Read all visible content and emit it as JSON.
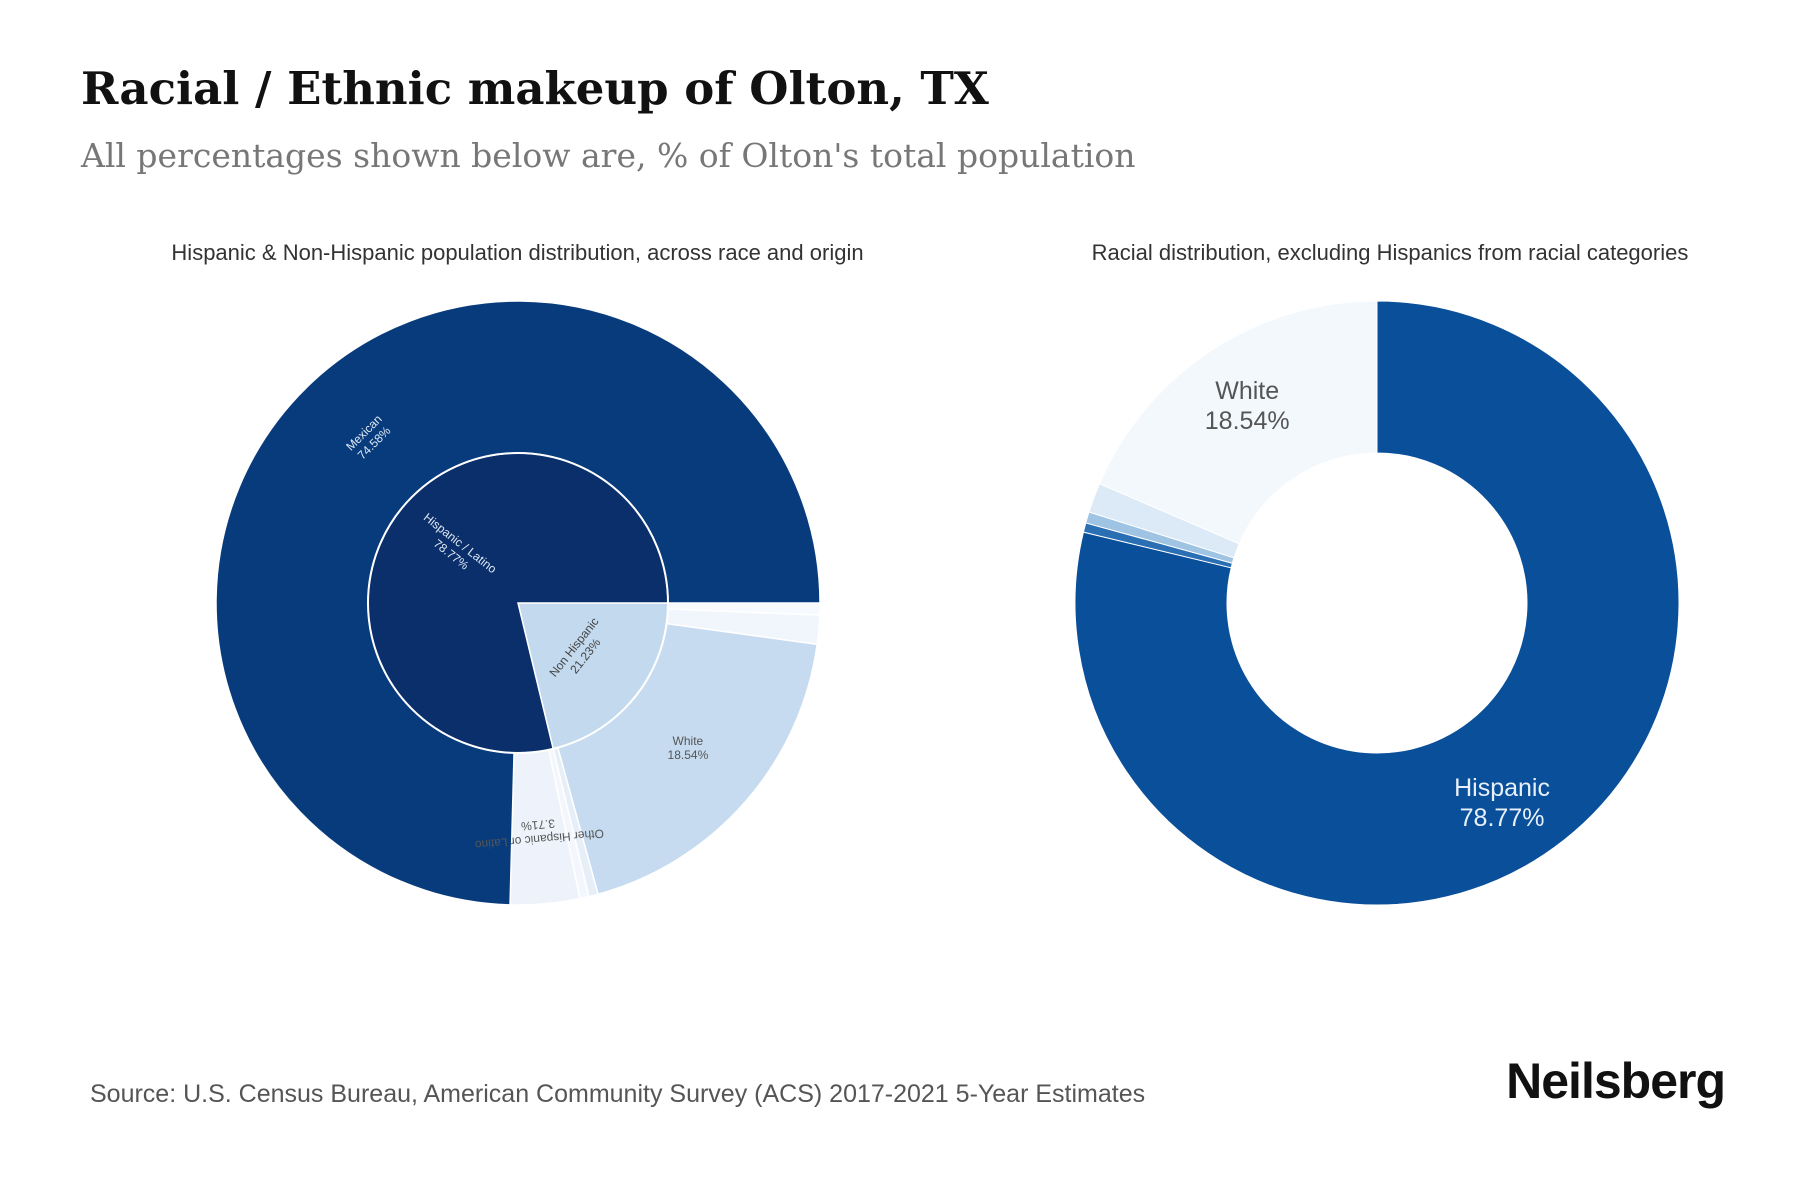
{
  "title": "Racial / Ethnic makeup of Olton, TX",
  "subtitle": "All percentages shown below are, % of Olton's total population",
  "source": "Source: U.S. Census Bureau, American Community Survey (ACS) 2017-2021 5-Year Estimates",
  "brand": "Neilsberg",
  "chart_data": [
    {
      "type": "sunburst",
      "title": "Hispanic & Non-Hispanic population distribution, across race and origin",
      "inner": [
        {
          "label": "Hispanic / Latino",
          "value_label": "78.77%",
          "value": 78.77,
          "color": "#0a2f6b"
        },
        {
          "label": "Non Hispanic",
          "value_label": "21.23%",
          "value": 21.23,
          "color": "#c3d9ee"
        }
      ],
      "outer": [
        {
          "label": "Mexican",
          "value_label": "74.58%",
          "value": 74.58,
          "color": "#083b7c",
          "parent": "Hispanic / Latino"
        },
        {
          "label": "Other Hispanic or Latino",
          "value_label": "3.71%",
          "value": 3.71,
          "color": "#eef3fb",
          "parent": "Hispanic / Latino"
        },
        {
          "label": "",
          "value_label": "",
          "value": 0.48,
          "color": "#f3f7fd",
          "parent": "Hispanic / Latino"
        },
        {
          "label": "",
          "value_label": "",
          "value": 0.5,
          "color": "#e6eef8",
          "parent": "Non Hispanic"
        },
        {
          "label": "White",
          "value_label": "18.54%",
          "value": 18.54,
          "color": "#c6dbef",
          "parent": "Non Hispanic"
        },
        {
          "label": "",
          "value_label": "",
          "value": 1.55,
          "color": "#f1f6fc",
          "parent": "Non Hispanic"
        },
        {
          "label": "",
          "value_label": "",
          "value": 0.64,
          "color": "#f7fafe",
          "parent": "Non Hispanic"
        }
      ]
    },
    {
      "type": "donut",
      "title": "Racial distribution, excluding Hispanics from racial categories",
      "slices": [
        {
          "label": "Hispanic",
          "value_label": "78.77%",
          "value": 78.77,
          "color": "#0a4f9a"
        },
        {
          "label": "",
          "value_label": "",
          "value": 0.5,
          "color": "#2a6fb4"
        },
        {
          "label": "",
          "value_label": "",
          "value": 0.6,
          "color": "#9ec3e3"
        },
        {
          "label": "",
          "value_label": "",
          "value": 1.59,
          "color": "#dce9f6"
        },
        {
          "label": "White",
          "value_label": "18.54%",
          "value": 18.54,
          "color": "#f3f8fd"
        }
      ]
    }
  ]
}
